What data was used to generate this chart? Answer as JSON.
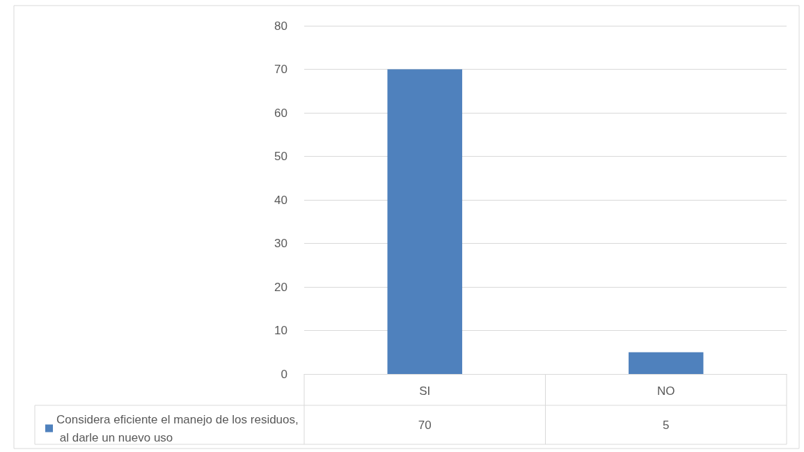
{
  "chart_data": {
    "type": "bar",
    "categories": [
      "SI",
      "NO"
    ],
    "series": [
      {
        "name": "Considera eficiente el manejo de los residuos, al darle un nuevo uso",
        "color": "#4f81bd",
        "values": [
          70,
          5
        ]
      }
    ],
    "ylim": [
      0,
      80
    ],
    "yticks": [
      0,
      10,
      20,
      30,
      40,
      50,
      60,
      70,
      80
    ],
    "grid": "y",
    "legend": "bottom left",
    "data_labels": true
  }
}
